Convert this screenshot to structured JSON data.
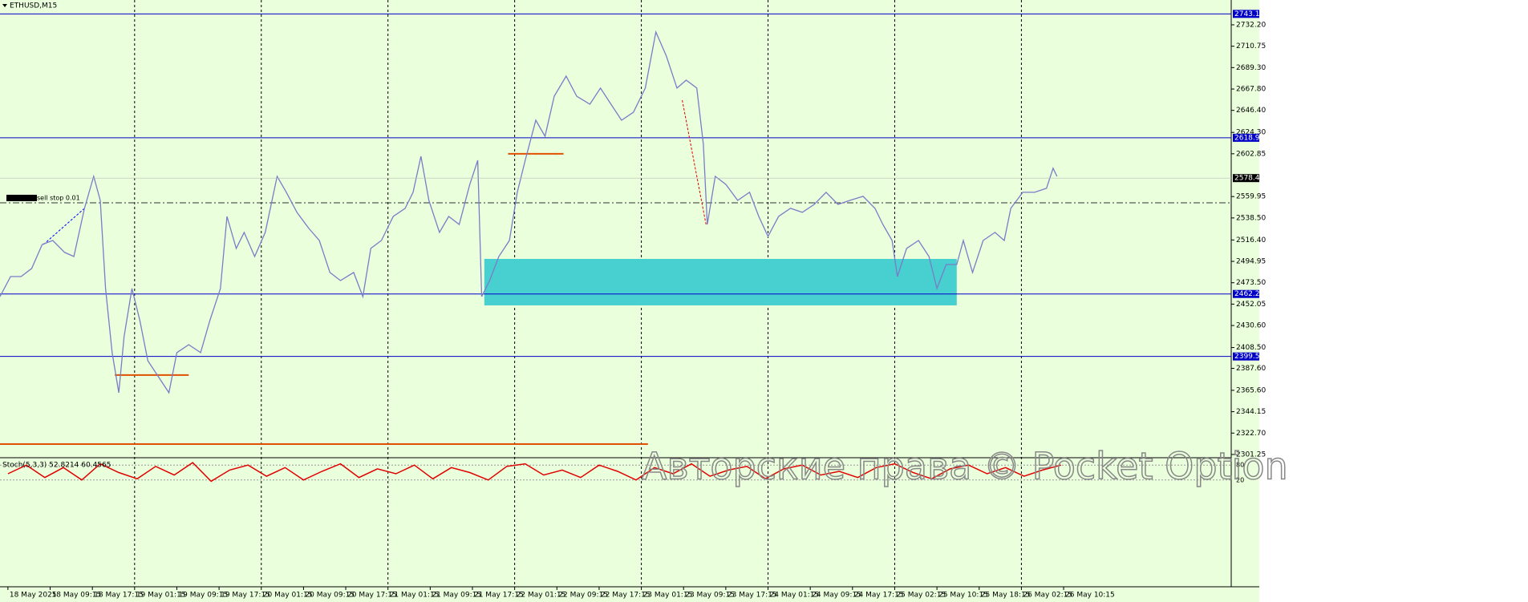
{
  "chart_data": {
    "type": "line",
    "title": "ETHUSD,M15",
    "xlim": [
      -6,
      927
    ],
    "ylim": [
      2298.8,
      2757.1
    ],
    "yticks": [
      {
        "value": 2732.2,
        "label": "2732.20"
      },
      2710.75,
      {
        "value": 2689.3,
        "label": "2689.30"
      },
      {
        "value": 2667.8,
        "label": "2667.80"
      },
      {
        "value": 2646.4,
        "label": "2646.40"
      },
      {
        "value": 2624.3,
        "label": "2624.30"
      },
      2602.85,
      2559.95,
      {
        "value": 2538.5,
        "label": "2538.50"
      },
      {
        "value": 2516.4,
        "label": "2516.40"
      },
      2494.95,
      {
        "value": 2473.5,
        "label": "2473.50"
      },
      2452.05,
      {
        "value": 2430.6,
        "label": "2430.60"
      },
      {
        "value": 2408.5,
        "label": "2408.50"
      },
      {
        "value": 2387.6,
        "label": "2387.60"
      },
      {
        "value": 2365.6,
        "label": "2365.60"
      },
      2344.15,
      {
        "value": 2322.7,
        "label": "2322.70"
      },
      2301.25
    ],
    "xticks": [
      {
        "value": 0,
        "label": "18 May 2025"
      },
      {
        "value": 32,
        "label": "18 May 09:15"
      },
      {
        "value": 64,
        "label": "18 May 17:15"
      },
      {
        "value": 96,
        "label": "19 May 01:15"
      },
      {
        "value": 128,
        "label": "19 May 09:15"
      },
      {
        "value": 160,
        "label": "19 May 17:15"
      },
      {
        "value": 192,
        "label": "20 May 01:15"
      },
      {
        "value": 224,
        "label": "20 May 09:15"
      },
      {
        "value": 256,
        "label": "20 May 17:15"
      },
      {
        "value": 288,
        "label": "21 May 01:15"
      },
      {
        "value": 320,
        "label": "21 May 09:15"
      },
      {
        "value": 352,
        "label": "21 May 17:15"
      },
      {
        "value": 384,
        "label": "22 May 01:15"
      },
      {
        "value": 416,
        "label": "22 May 09:15"
      },
      {
        "value": 448,
        "label": "22 May 17:15"
      },
      {
        "value": 480,
        "label": "23 May 01:15"
      },
      {
        "value": 512,
        "label": "23 May 09:15"
      },
      {
        "value": 544,
        "label": "23 May 17:15"
      },
      {
        "value": 576,
        "label": "24 May 01:15"
      },
      {
        "value": 608,
        "label": "24 May 09:15"
      },
      {
        "value": 640,
        "label": "24 May 17:15"
      },
      {
        "value": 672,
        "label": "25 May 02:15"
      },
      {
        "value": 704,
        "label": "25 May 10:15"
      },
      {
        "value": 736,
        "label": "25 May 18:15"
      },
      {
        "value": 768,
        "label": "26 May 02:15"
      },
      {
        "value": 800,
        "label": "26 May 10:15"
      }
    ],
    "grid": true,
    "series": [
      {
        "name": "ETHUSD",
        "color": "#7b7bc8",
        "x": [
          -6,
          2,
          10,
          18,
          26,
          34,
          43,
          50,
          58,
          65,
          70,
          74,
          79,
          84,
          88,
          94,
          100,
          106,
          114,
          122,
          128,
          137,
          146,
          153,
          161,
          166,
          173,
          179,
          187,
          195,
          204,
          211,
          219,
          228,
          236,
          244,
          252,
          262,
          269,
          275,
          283,
          292,
          301,
          307,
          313,
          319,
          327,
          334,
          342,
          350,
          356,
          359,
          365,
          372,
          380,
          386,
          392,
          400,
          407,
          414,
          423,
          431,
          441,
          449,
          457,
          465,
          474,
          483,
          491,
          499,
          507,
          514,
          522,
          527,
          530,
          536,
          544,
          553,
          562,
          569,
          576,
          584,
          593,
          602,
          611,
          620,
          629,
          638,
          648,
          657,
          663,
          670,
          674,
          681,
          690,
          698,
          704,
          711,
          719,
          724,
          731,
          739,
          748,
          755,
          760,
          769,
          778,
          787,
          792,
          795
        ],
        "values": [
          2459.6,
          2479.7,
          2479.7,
          2487.8,
          2511.9,
          2515.9,
          2503.9,
          2499.8,
          2548.1,
          2580.2,
          2556.1,
          2467.7,
          2403.4,
          2363.2,
          2419.5,
          2467.7,
          2435.5,
          2395.3,
          2379.3,
          2363.2,
          2403.4,
          2411.4,
          2403.4,
          2435.5,
          2467.7,
          2540.0,
          2507.9,
          2524.0,
          2499.8,
          2524.0,
          2580.2,
          2564.2,
          2544.1,
          2528.0,
          2515.9,
          2483.8,
          2475.7,
          2483.8,
          2459.6,
          2507.9,
          2515.9,
          2540.0,
          2548.1,
          2564.2,
          2600.3,
          2556.1,
          2524.0,
          2540.0,
          2532.0,
          2572.2,
          2596.3,
          2459.6,
          2475.7,
          2499.8,
          2515.9,
          2564.2,
          2596.3,
          2636.5,
          2620.4,
          2660.6,
          2680.7,
          2660.6,
          2652.6,
          2668.7,
          2652.6,
          2636.5,
          2644.5,
          2668.7,
          2725.0,
          2700.8,
          2668.7,
          2676.7,
          2668.7,
          2612.4,
          2532.0,
          2580.2,
          2572.2,
          2556.1,
          2564.2,
          2540.0,
          2520.0,
          2540.0,
          2548.1,
          2544.1,
          2552.1,
          2564.2,
          2552.1,
          2556.1,
          2560.2,
          2548.1,
          2532.0,
          2515.9,
          2479.7,
          2507.9,
          2515.9,
          2499.8,
          2467.7,
          2491.8,
          2491.8,
          2515.9,
          2483.8,
          2515.9,
          2524.0,
          2515.9,
          2548.1,
          2564.2,
          2564.2,
          2568.2,
          2588.3,
          2580.2
        ]
      }
    ],
    "levels": [
      {
        "value": 2743.17,
        "color": "#0000c8"
      },
      {
        "value": 2618.9,
        "label": "2618.90",
        "color": "#0000c8"
      },
      {
        "value": 2462.24,
        "color": "#0000c8"
      },
      {
        "value": 2399.56,
        "color": "#0000c8"
      }
    ],
    "current_price": 2578.46,
    "pending_level": 2553.7,
    "annotation": "sell stop 0.01",
    "zone": {
      "x": [
        361,
        719
      ],
      "y": [
        2450.8,
        2497.4
      ],
      "color": "#48cfcf"
    },
    "support_lines": [
      {
        "x": [
          -6,
          485
        ],
        "y": 2311.7
      },
      {
        "x": [
          81,
          137
        ],
        "y": 2380.9
      },
      {
        "x": [
          379,
          421
        ],
        "y": 2602.8
      }
    ],
    "trade_lines": [
      {
        "x": [
          27,
          58
        ],
        "y": [
          2511.9,
          2548.1
        ],
        "color": "#0000ff"
      },
      {
        "x": [
          511,
          529
        ],
        "y": [
          2656.6,
          2532.0
        ],
        "color": "#e00000"
      }
    ],
    "indicator": {
      "title": "Stoch(5,3,3) 52.8214 60.4565",
      "ylim": [
        0,
        100
      ],
      "yticks": [
        20,
        80
      ],
      "color": "#e00000",
      "x": [
        0,
        14,
        28,
        42,
        56,
        70,
        84,
        98,
        112,
        126,
        140,
        154,
        168,
        182,
        196,
        210,
        224,
        238,
        252,
        266,
        280,
        294,
        308,
        322,
        336,
        350,
        364,
        378,
        392,
        406,
        420,
        434,
        448,
        462,
        476,
        490,
        504,
        518,
        532,
        546,
        560,
        574,
        588,
        602,
        616,
        630,
        644,
        658,
        672,
        686,
        700,
        714,
        728,
        742,
        756,
        770,
        784,
        798
      ],
      "values": [
        45,
        80,
        30,
        70,
        20,
        85,
        50,
        25,
        75,
        40,
        90,
        15,
        60,
        80,
        35,
        70,
        20,
        55,
        85,
        30,
        65,
        45,
        80,
        25,
        70,
        50,
        20,
        75,
        85,
        40,
        60,
        30,
        80,
        55,
        20,
        70,
        45,
        85,
        35,
        60,
        75,
        25,
        65,
        80,
        40,
        55,
        30,
        70,
        85,
        50,
        25,
        65,
        80,
        45,
        70,
        35,
        60,
        80
      ]
    },
    "watermark": "Авторские права © Pocket Option"
  }
}
